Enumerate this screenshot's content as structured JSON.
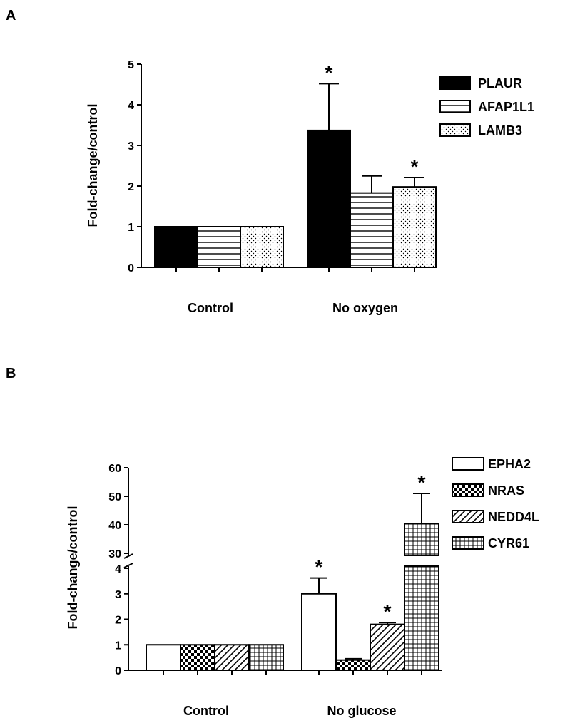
{
  "panels": [
    {
      "letter": "A",
      "chart_data": {
        "type": "bar",
        "ylabel": "Fold-change/control",
        "categories": [
          "Control",
          "No oxygen"
        ],
        "ylim": [
          0,
          5
        ],
        "yticks": [
          "0",
          "1",
          "2",
          "3",
          "4",
          "5"
        ],
        "series": [
          {
            "name": "PLAUR",
            "pattern": "solid",
            "values": [
              1.0,
              3.37
            ],
            "errors": [
              0,
              1.15
            ],
            "sig": [
              false,
              true
            ]
          },
          {
            "name": "AFAP1L1",
            "pattern": "hlines",
            "values": [
              1.0,
              1.83
            ],
            "errors": [
              0,
              0.42
            ],
            "sig": [
              false,
              false
            ]
          },
          {
            "name": "LAMB3",
            "pattern": "dots",
            "values": [
              1.0,
              1.98
            ],
            "errors": [
              0,
              0.23
            ],
            "sig": [
              false,
              true
            ]
          }
        ],
        "significance_marker": "*",
        "legend": "top-right",
        "grid": false
      }
    },
    {
      "letter": "B",
      "chart_data": {
        "type": "bar",
        "ylabel": "Fold-change/control",
        "categories": [
          "Control",
          "No glucose"
        ],
        "broken_axis": {
          "lower_range": [
            0,
            4
          ],
          "upper_range": [
            30,
            60
          ],
          "lower_ticks": [
            "0",
            "1",
            "2",
            "3",
            "4"
          ],
          "upper_ticks": [
            "30",
            "40",
            "50",
            "60"
          ]
        },
        "series": [
          {
            "name": "EPHA2",
            "pattern": "empty",
            "values": [
              1.0,
              3.0
            ],
            "errors": [
              0,
              0.62
            ],
            "sig": [
              false,
              true
            ]
          },
          {
            "name": "NRAS",
            "pattern": "checker",
            "values": [
              1.0,
              0.4
            ],
            "errors": [
              0,
              0.05
            ],
            "sig": [
              false,
              false
            ]
          },
          {
            "name": "NEDD4L",
            "pattern": "diagonal",
            "values": [
              1.0,
              1.8
            ],
            "errors": [
              0,
              0.07
            ],
            "sig": [
              false,
              true
            ]
          },
          {
            "name": "CYR61",
            "pattern": "grid",
            "values": [
              1.0,
              40.5
            ],
            "errors": [
              0,
              10.5
            ],
            "sig": [
              false,
              true
            ]
          }
        ],
        "significance_marker": "*",
        "legend": "top-right",
        "grid": false
      }
    }
  ]
}
